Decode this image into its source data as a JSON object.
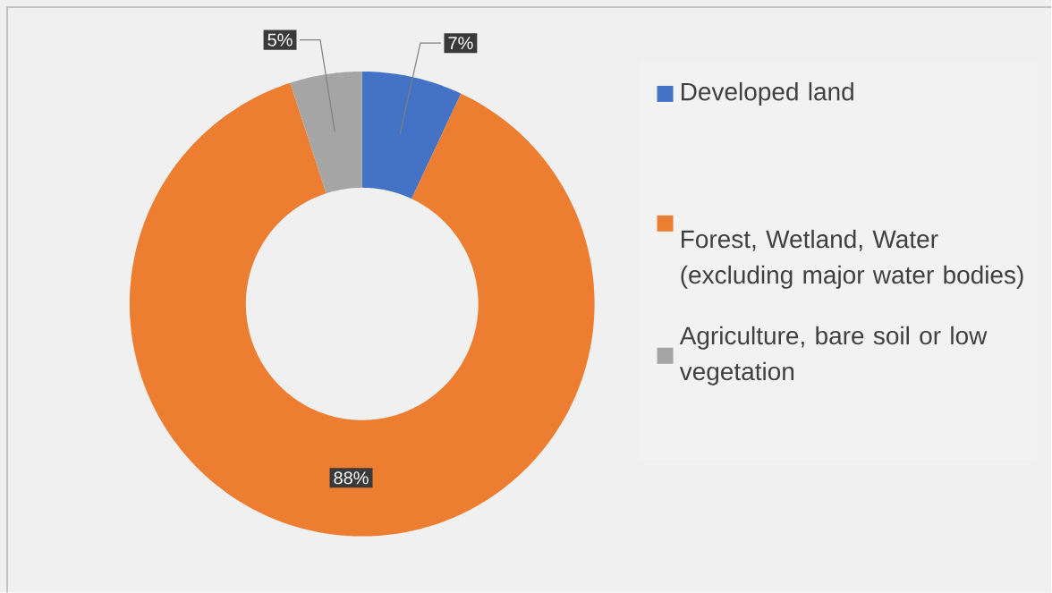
{
  "chart_data": {
    "type": "donut",
    "categories": [
      "Developed land",
      "Forest, Wetland, Water (excluding major water bodies)",
      "Agriculture, bare soil or low vegetation"
    ],
    "values": [
      7,
      88,
      5
    ],
    "colors": [
      "#4472c4",
      "#ed7d31",
      "#a5a5a5"
    ],
    "value_labels": [
      "7%",
      "88%",
      "5%"
    ],
    "legend": "right"
  }
}
